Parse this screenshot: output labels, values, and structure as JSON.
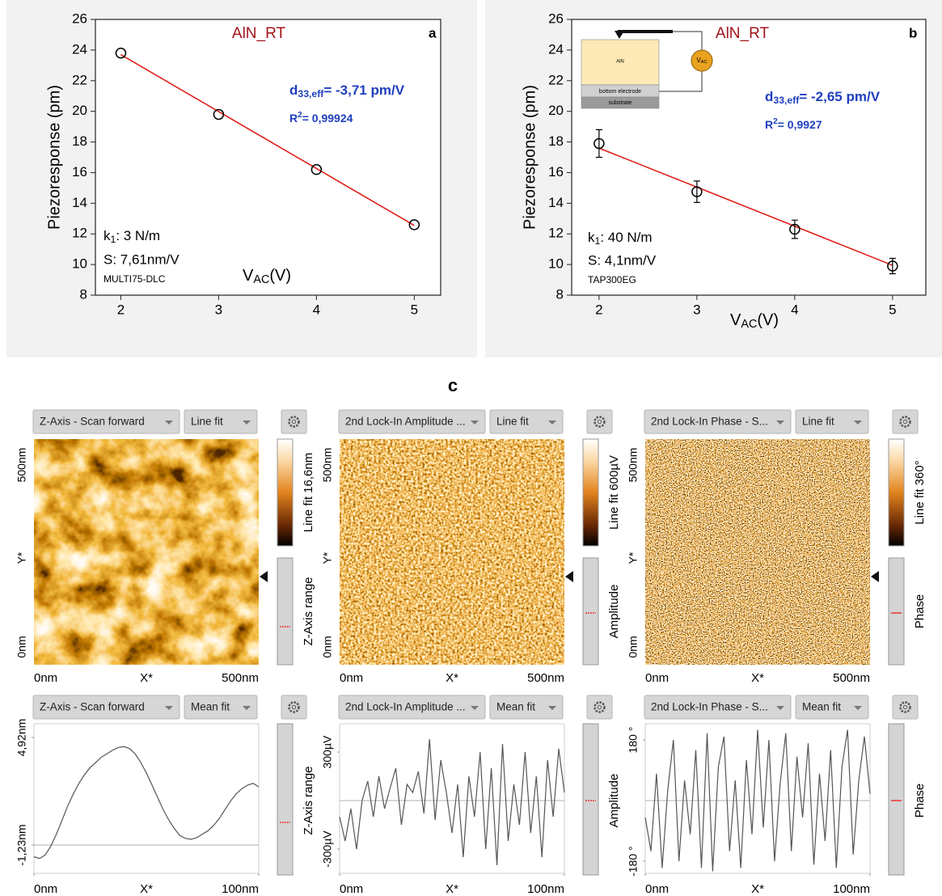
{
  "chart_data": [
    {
      "type": "scatter",
      "x": [
        2,
        3,
        4,
        5
      ],
      "values": [
        23.8,
        19.8,
        16.2,
        12.6
      ],
      "color": "#000000",
      "xlim": [
        1.74,
        5.27
      ],
      "ylim": [
        8,
        26
      ],
      "xticks": [
        2,
        3,
        4,
        5
      ],
      "yticks": [
        8,
        10,
        12,
        14,
        16,
        18,
        20,
        22,
        24,
        26
      ],
      "fit": {
        "x": [
          2,
          5
        ],
        "values": [
          23.7,
          12.55
        ],
        "color": "#e0201a"
      },
      "ylabel": "Piezoresponse (pm)",
      "xlabel": {
        "symbol": "V",
        "sub": "AC",
        "text": "(V)"
      },
      "annotations": {
        "sample": "AlN_RT",
        "panel": "a",
        "d33": {
          "symbol": "d",
          "sub": "33,eff",
          "text": "= -3,71 pm/V"
        },
        "r2": {
          "symbol": "R",
          "sup": "2",
          "text": "= 0,99924"
        },
        "k": {
          "symbol": "k",
          "sub": "1",
          "text": ": 3 N/m"
        },
        "sensitivity": "S: 7,61nm/V",
        "probe": "MULTI75-DLC"
      }
    },
    {
      "type": "scatter",
      "x": [
        2,
        3,
        4,
        5
      ],
      "values": [
        17.9,
        14.75,
        12.3,
        9.9
      ],
      "errors": [
        0.9,
        0.7,
        0.6,
        0.5
      ],
      "color": "#000000",
      "xlim": [
        1.72,
        5.34
      ],
      "ylim": [
        8,
        26
      ],
      "xticks": [
        2,
        3,
        4,
        5
      ],
      "yticks": [
        8,
        10,
        12,
        14,
        16,
        18,
        20,
        22,
        24,
        26
      ],
      "fit": {
        "x": [
          2,
          5
        ],
        "values": [
          17.6,
          9.95
        ],
        "color": "#e0201a"
      },
      "ylabel": "Piezoresponse (pm)",
      "xlabel": {
        "symbol": "V",
        "sub": "AC",
        "text": "(V)"
      },
      "annotations": {
        "sample": "AlN_RT",
        "panel": "b",
        "d33": {
          "symbol": "d",
          "sub": "33,eff",
          "text": "= -2,65 pm/V"
        },
        "r2": {
          "symbol": "R",
          "sup": "2",
          "text": "= 0,9927"
        },
        "k": {
          "symbol": "k",
          "sub": "1",
          "text": ": 40 N/m"
        },
        "sensitivity": "S: 4,1nm/V",
        "probe": "TAP300EG"
      },
      "inset": {
        "layer": "AlN",
        "electrode": "bottom electrode",
        "substrate": "substrate",
        "source": {
          "symbol": "V",
          "sub": "AC"
        }
      }
    }
  ],
  "panel_c": {
    "label": "c",
    "columns": [
      {
        "image": {
          "source": "Z-Axis - Scan forward",
          "filter": "Line fit",
          "colorbar": "Line fit 16,6nm",
          "range_label": "Z-Axis range",
          "y_labels": [
            "500nm",
            "Y*",
            "0nm"
          ],
          "x_labels": [
            "0nm",
            "X*",
            "500nm"
          ]
        },
        "profile": {
          "source": "Z-Axis - Scan forward",
          "filter": "Mean fit",
          "range_label": "Z-Axis range",
          "xlabel": "X*",
          "xlim": [
            0,
            100
          ],
          "ylim": [
            -2.85,
            5.71
          ],
          "xticks": [
            {
              "value": 0,
              "label": "0nm"
            },
            {
              "value": 100,
              "label": "100nm"
            }
          ],
          "yticks": [
            {
              "value": 4.92,
              "label": "4,92nm"
            },
            {
              "value": -1.23,
              "label": "-1,23nm"
            }
          ],
          "baseline": -1.23,
          "x": [
            0,
            2.5,
            5,
            7.5,
            10,
            12.5,
            15,
            17.5,
            20,
            22.5,
            25,
            27.5,
            30,
            32.5,
            35,
            37.5,
            40,
            42.5,
            45,
            47.5,
            50,
            52.5,
            55,
            57.5,
            60,
            62.5,
            65,
            67.5,
            70,
            72.5,
            75,
            77.5,
            80,
            82.5,
            85,
            87.5,
            90,
            92.5,
            95,
            97.5,
            100
          ],
          "values": [
            -1.9,
            -2.0,
            -1.8,
            -1.3,
            -0.6,
            0.2,
            1.0,
            1.7,
            2.3,
            2.8,
            3.2,
            3.5,
            3.8,
            4.0,
            4.2,
            4.35,
            4.4,
            4.3,
            4.0,
            3.5,
            2.9,
            2.2,
            1.5,
            0.8,
            0.2,
            -0.3,
            -0.7,
            -0.85,
            -0.9,
            -0.8,
            -0.6,
            -0.4,
            -0.1,
            0.3,
            0.8,
            1.3,
            1.7,
            2.0,
            2.2,
            2.3,
            2.1
          ]
        }
      },
      {
        "image": {
          "source": "2nd Lock-In Amplitude ...",
          "filter": "Line fit",
          "colorbar": "Line fit 600µV",
          "range_label": "Amplitude",
          "y_labels": [
            "500nm",
            "Y*",
            "0nm"
          ],
          "x_labels": [
            "0nm",
            "X*",
            "500nm"
          ]
        },
        "profile": {
          "source": "2nd Lock-In Amplitude ...",
          "filter": "Mean fit",
          "range_label": "Amplitude",
          "xlabel": "X*",
          "xlim": [
            0,
            100
          ],
          "ylim": [
            -450,
            475
          ],
          "xticks": [
            {
              "value": 0,
              "label": "0nm"
            },
            {
              "value": 100,
              "label": "100nm"
            }
          ],
          "yticks": [
            {
              "value": 300,
              "label": "300µV"
            },
            {
              "value": -300,
              "label": "-300µV"
            }
          ],
          "baseline": 0,
          "x": [
            0,
            2.5,
            5,
            7.5,
            10,
            12.5,
            15,
            17.5,
            20,
            22.5,
            25,
            27.5,
            30,
            32.5,
            35,
            37.5,
            40,
            42.5,
            45,
            47.5,
            50,
            52.5,
            55,
            57.5,
            60,
            62.5,
            65,
            67.5,
            70,
            72.5,
            75,
            77.5,
            80,
            82.5,
            85,
            87.5,
            90,
            92.5,
            95,
            97.5,
            100
          ],
          "values": [
            -100,
            -250,
            -50,
            -300,
            0,
            120,
            -100,
            150,
            -50,
            80,
            200,
            -150,
            100,
            50,
            180,
            -80,
            380,
            -120,
            250,
            50,
            -200,
            100,
            -350,
            150,
            -100,
            300,
            -300,
            200,
            -400,
            350,
            -250,
            100,
            -150,
            300,
            -200,
            150,
            -350,
            250,
            -100,
            320,
            50
          ]
        }
      },
      {
        "image": {
          "source": "2nd Lock-In Phase - S...",
          "filter": "Line fit",
          "colorbar": "Line fit 360°",
          "range_label": "Phase",
          "y_labels": [
            "500nm",
            "Y*",
            "0nm"
          ],
          "x_labels": [
            "0nm",
            "X*",
            "500nm"
          ]
        },
        "profile": {
          "source": "2nd Lock-In Phase - S...",
          "filter": "Mean fit",
          "range_label": "Phase",
          "xlabel": "X*",
          "xlim": [
            0,
            100
          ],
          "ylim": [
            -216,
            228
          ],
          "xticks": [
            {
              "value": 0,
              "label": "0nm"
            },
            {
              "value": 100,
              "label": "100nm"
            }
          ],
          "yticks": [
            {
              "value": 180,
              "label": "180 °"
            },
            {
              "value": -180,
              "label": "-180 °"
            }
          ],
          "baseline": 0,
          "x": [
            0,
            2.5,
            5,
            7.5,
            10,
            12.5,
            15,
            17.5,
            20,
            22.5,
            25,
            27.5,
            30,
            32.5,
            35,
            37.5,
            40,
            42.5,
            45,
            47.5,
            50,
            52.5,
            55,
            57.5,
            60,
            62.5,
            65,
            67.5,
            70,
            72.5,
            75,
            77.5,
            80,
            82.5,
            85,
            87.5,
            90,
            92.5,
            95,
            97.5,
            100
          ],
          "values": [
            -50,
            -150,
            80,
            -200,
            30,
            180,
            -180,
            60,
            -100,
            150,
            -200,
            200,
            -210,
            100,
            190,
            -150,
            60,
            -200,
            120,
            -100,
            210,
            -80,
            180,
            -180,
            50,
            200,
            -150,
            130,
            -50,
            170,
            -190,
            80,
            -120,
            150,
            -200,
            100,
            210,
            -160,
            60,
            190,
            20
          ]
        }
      }
    ]
  }
}
